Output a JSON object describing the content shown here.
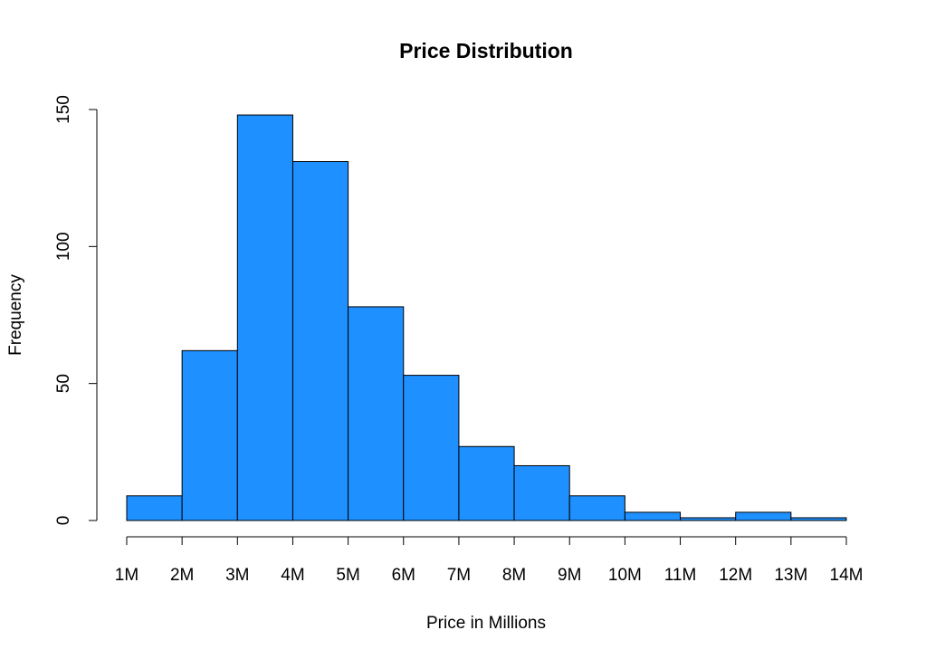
{
  "chart_data": {
    "type": "bar",
    "title": "Price Distribution",
    "xlabel": "Price in Millions",
    "ylabel": "Frequency",
    "bin_edges": [
      1,
      2,
      3,
      4,
      5,
      6,
      7,
      8,
      9,
      10,
      11,
      12,
      13,
      14
    ],
    "x_tick_labels": [
      "1M",
      "2M",
      "3M",
      "4M",
      "5M",
      "6M",
      "7M",
      "8M",
      "9M",
      "10M",
      "11M",
      "12M",
      "13M",
      "14M"
    ],
    "values": [
      9,
      62,
      148,
      131,
      78,
      53,
      27,
      20,
      9,
      3,
      1,
      3,
      1
    ],
    "y_ticks": [
      0,
      50,
      100,
      150
    ],
    "xlim": [
      1,
      14
    ],
    "ylim": [
      0,
      150
    ],
    "bar_color": "#1E90FF",
    "grid": false,
    "legend": "none"
  }
}
